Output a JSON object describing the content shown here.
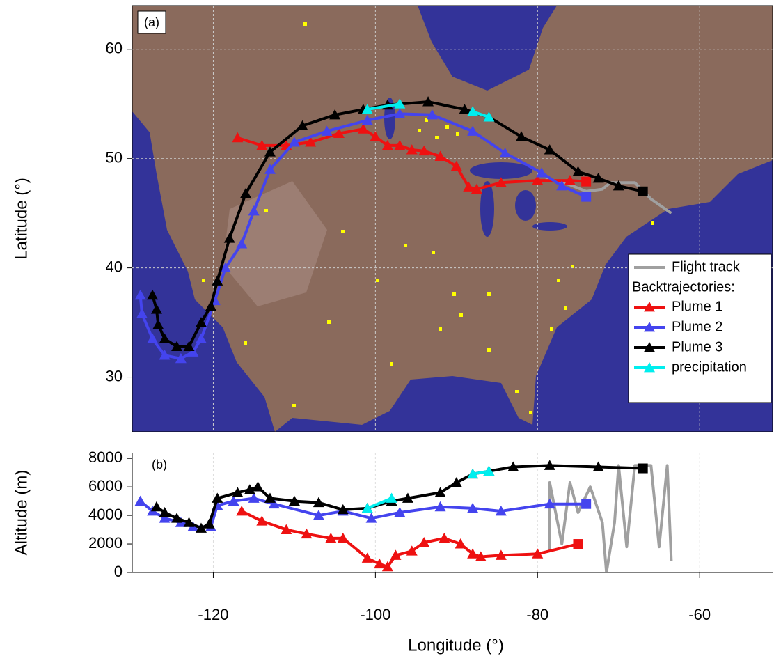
{
  "chart_data": [
    {
      "type": "line",
      "panel_label": "(a)",
      "y_label": "Latitude (°)",
      "xlim": [
        -130,
        -51
      ],
      "xticks": [
        -120,
        -100,
        -80,
        -60
      ],
      "ylim": [
        25,
        64
      ],
      "yticks": [
        30,
        40,
        50,
        60
      ],
      "grid": true,
      "legend": "lower right",
      "legend_title": "Backtrajectories:",
      "series": [
        {
          "name": "Flight track",
          "color": "#a0a0a0",
          "marker": "none",
          "x": [
            -79,
            -76,
            -74,
            -72,
            -71,
            -68,
            -66,
            -63.5
          ],
          "values": [
            48.2,
            47.6,
            47,
            47.2,
            47.8,
            47.8,
            46.3,
            45
          ]
        },
        {
          "name": "Plume 1",
          "color": "#ee1111",
          "marker": "triangle",
          "end_marker": "square",
          "x": [
            -117,
            -114,
            -111,
            -108,
            -104.5,
            -101.5,
            -100,
            -98.5,
            -97,
            -95.5,
            -94,
            -92,
            -90,
            -88.5,
            -87.5,
            -84.5,
            -80,
            -76,
            -74
          ],
          "values": [
            51.9,
            51.2,
            51.2,
            51.5,
            52.3,
            52.7,
            52,
            51.2,
            51.2,
            50.8,
            50.7,
            50.2,
            49.3,
            47.4,
            47.2,
            47.8,
            48,
            48,
            47.9
          ]
        },
        {
          "name": "Plume 2",
          "color": "#4444ee",
          "marker": "triangle",
          "end_marker": "square",
          "x": [
            -129,
            -128.8,
            -127.5,
            -126,
            -124,
            -122.5,
            -121.5,
            -119.8,
            -118.5,
            -116.5,
            -115,
            -113,
            -110,
            -106,
            -101,
            -97,
            -93,
            -88,
            -84,
            -79.5,
            -77,
            -74
          ],
          "values": [
            37.5,
            35.8,
            33.5,
            32,
            31.7,
            32.3,
            33.5,
            37,
            40,
            42.2,
            45.2,
            49,
            51.5,
            52.5,
            53.5,
            54.1,
            54,
            52.5,
            50.5,
            48.7,
            47.5,
            46.5
          ]
        },
        {
          "name": "Plume 3",
          "color": "#000000",
          "marker": "triangle",
          "end_marker": "square",
          "x": [
            -127.5,
            -127,
            -126.8,
            -126,
            -124.5,
            -123,
            -121.5,
            -120.3,
            -119.5,
            -118,
            -116,
            -113,
            -109,
            -105,
            -101.5,
            -98.5,
            -93.5,
            -89,
            -86,
            -82,
            -78.5,
            -75,
            -72.5,
            -70,
            -67
          ],
          "values": [
            37.5,
            36.2,
            34.8,
            33.5,
            32.8,
            32.8,
            35,
            36.5,
            38.8,
            42.7,
            46.8,
            50.6,
            53,
            54,
            54.5,
            54.9,
            55.2,
            54.5,
            53.8,
            52,
            50.8,
            48.8,
            48.2,
            47.5,
            47
          ]
        },
        {
          "name": "precipitation",
          "color": "#00eeee",
          "marker": "triangle",
          "x": [
            -101,
            -97,
            null,
            -88,
            -86
          ],
          "values": [
            54.5,
            55,
            null,
            54.3,
            53.8
          ]
        }
      ]
    },
    {
      "type": "line",
      "panel_label": "(b)",
      "y_label": "Altitude (m)",
      "x_label": "Longitude (°)",
      "xlim": [
        -130,
        -51
      ],
      "xticks": [
        -120,
        -100,
        -80,
        -60
      ],
      "ylim": [
        0,
        8400
      ],
      "yticks": [
        0,
        2000,
        4000,
        6000,
        8000
      ],
      "grid": true,
      "series": [
        {
          "color": "#a0a0a0",
          "marker": "none",
          "x": [
            -78.5,
            -78.5,
            -77,
            -76,
            -75,
            -73.5,
            -72,
            -71.5,
            -70.5,
            -70,
            -69,
            -68,
            -66,
            -65,
            -64,
            -63.5
          ],
          "values": [
            1500,
            6300,
            2000,
            6300,
            4200,
            6000,
            3500,
            0,
            3500,
            7500,
            1800,
            7500,
            7500,
            1800,
            7500,
            800
          ]
        },
        {
          "color": "#ee1111",
          "marker": "triangle",
          "end_marker": "square",
          "x": [
            -116.5,
            -114,
            -111,
            -108.5,
            -105.5,
            -104,
            -101,
            -99.5,
            -98.5,
            -97.5,
            -95.5,
            -94,
            -91.5,
            -89.5,
            -88,
            -87,
            -84.5,
            -80,
            -75
          ],
          "values": [
            4300,
            3600,
            3000,
            2700,
            2400,
            2400,
            1000,
            600,
            400,
            1200,
            1500,
            2100,
            2400,
            2000,
            1300,
            1100,
            1200,
            1300,
            2000
          ]
        },
        {
          "color": "#4444ee",
          "marker": "triangle",
          "end_marker": "square",
          "x": [
            -129,
            -127.5,
            -126,
            -124,
            -122.5,
            -120.3,
            -119.5,
            -117.5,
            -115,
            -112.5,
            -107,
            -104,
            -100.5,
            -97,
            -92,
            -88,
            -84.5,
            -78.5,
            -74
          ],
          "values": [
            5000,
            4300,
            3800,
            3500,
            3200,
            3200,
            4700,
            5000,
            5200,
            4800,
            4000,
            4300,
            3800,
            4200,
            4600,
            4500,
            4300,
            4800,
            4800
          ]
        },
        {
          "color": "#000000",
          "marker": "triangle",
          "end_marker": "square",
          "x": [
            -127,
            -126,
            -124.5,
            -123,
            -121.5,
            -120.5,
            -119.5,
            -117,
            -115.5,
            -114.5,
            -113,
            -110,
            -107,
            -104,
            -101,
            -98,
            -96,
            -92,
            -90,
            -88,
            -86,
            -83,
            -78.5,
            -72.5,
            -67
          ],
          "values": [
            4600,
            4200,
            3800,
            3500,
            3100,
            3400,
            5200,
            5600,
            5800,
            6000,
            5200,
            5000,
            4900,
            4400,
            4500,
            5000,
            5200,
            5600,
            6300,
            6900,
            7100,
            7400,
            7500,
            7400,
            7300
          ]
        },
        {
          "color": "#00eeee",
          "marker": "triangle",
          "x": [
            -101,
            -98,
            null,
            -88,
            -86
          ],
          "values": [
            4500,
            5200,
            null,
            6900,
            7100
          ]
        }
      ]
    }
  ]
}
